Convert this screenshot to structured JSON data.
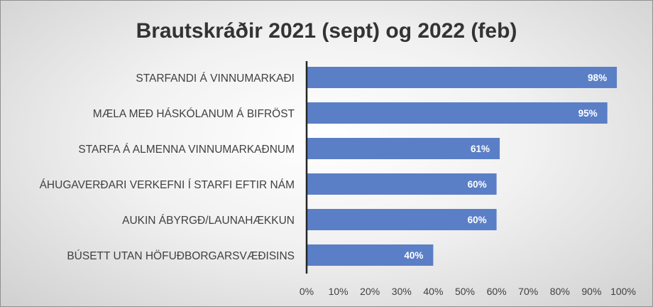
{
  "chart_data": {
    "type": "bar",
    "orientation": "horizontal",
    "title": "Brautskráðir 2021 (sept) og 2022 (feb)",
    "categories": [
      "STARFANDI Á VINNUMARKAÐI",
      "MÆLA MEÐ HÁSKÓLANUM Á BIFRÖST",
      "STARFA Á ALMENNA VINNUMARKAÐNUM",
      "ÁHUGAVERÐARI VERKEFNI Í STARFI EFTIR NÁM",
      "AUKIN ÁBYRGÐ/LAUNAHÆKKUN",
      "BÚSETT UTAN HÖFUÐBORGARSVÆÐISINS"
    ],
    "values": [
      98,
      95,
      61,
      60,
      60,
      40
    ],
    "data_labels": [
      "98%",
      "95%",
      "61%",
      "60%",
      "60%",
      "40%"
    ],
    "xlim": [
      0,
      100
    ],
    "x_ticks": [
      0,
      10,
      20,
      30,
      40,
      50,
      60,
      70,
      80,
      90,
      100
    ],
    "x_tick_labels": [
      "0%",
      "10%",
      "20%",
      "30%",
      "40%",
      "50%",
      "60%",
      "70%",
      "80%",
      "90%",
      "100%"
    ],
    "grid": false,
    "legend": "none",
    "bar_color": "#5b7fc6",
    "axis_color": "#262626"
  }
}
